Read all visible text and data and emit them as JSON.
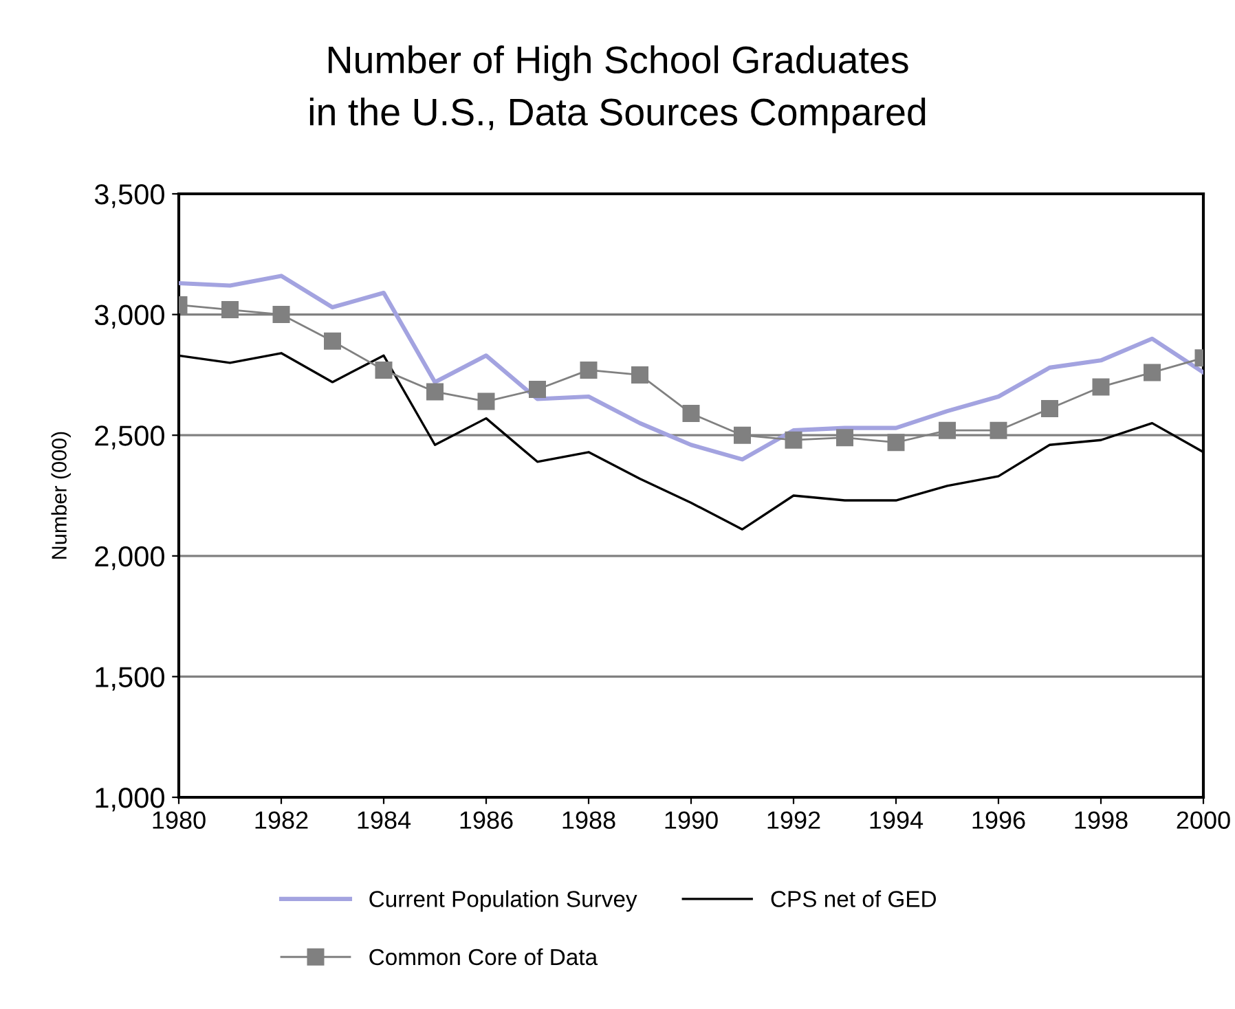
{
  "chart_data": {
    "type": "line",
    "title": "Number of High School Graduates\nin the U.S., Data Sources Compared",
    "ylabel": "Number (000)",
    "x": [
      1980,
      1981,
      1982,
      1983,
      1984,
      1985,
      1986,
      1987,
      1988,
      1989,
      1990,
      1991,
      1992,
      1993,
      1994,
      1995,
      1996,
      1997,
      1998,
      1999,
      2000
    ],
    "series": [
      {
        "name": "Current Population Survey",
        "color": "#a3a3e0",
        "marker": "none",
        "values": [
          3130,
          3120,
          3160,
          3030,
          3090,
          2720,
          2830,
          2650,
          2660,
          2550,
          2460,
          2400,
          2520,
          2530,
          2530,
          2600,
          2660,
          2780,
          2810,
          2900,
          2760
        ]
      },
      {
        "name": "CPS net of GED",
        "color": "#000000",
        "marker": "none",
        "values": [
          2830,
          2800,
          2840,
          2720,
          2830,
          2460,
          2570,
          2390,
          2430,
          2320,
          2220,
          2110,
          2250,
          2230,
          2230,
          2290,
          2330,
          2460,
          2480,
          2550,
          2430
        ]
      },
      {
        "name": "Common Core of Data",
        "color": "#808080",
        "marker": "square",
        "values": [
          3040,
          3020,
          3000,
          2890,
          2770,
          2680,
          2640,
          2690,
          2770,
          2750,
          2590,
          2500,
          2480,
          2490,
          2470,
          2520,
          2520,
          2610,
          2700,
          2760,
          2820
        ]
      }
    ],
    "xlim": [
      1980,
      2000
    ],
    "xticks": [
      1980,
      1982,
      1984,
      1986,
      1988,
      1990,
      1992,
      1994,
      1996,
      1998,
      2000
    ],
    "ylim": [
      1000,
      3500
    ],
    "yticks": [
      {
        "value": 1000,
        "label": "1,000"
      },
      {
        "value": 1500,
        "label": "1,500"
      },
      {
        "value": 2000,
        "label": "2,000"
      },
      {
        "value": 2500,
        "label": "2,500"
      },
      {
        "value": 3000,
        "label": "3,000"
      },
      {
        "value": 3500,
        "label": "3,500"
      }
    ],
    "grid": "y",
    "legend": "bottom"
  }
}
